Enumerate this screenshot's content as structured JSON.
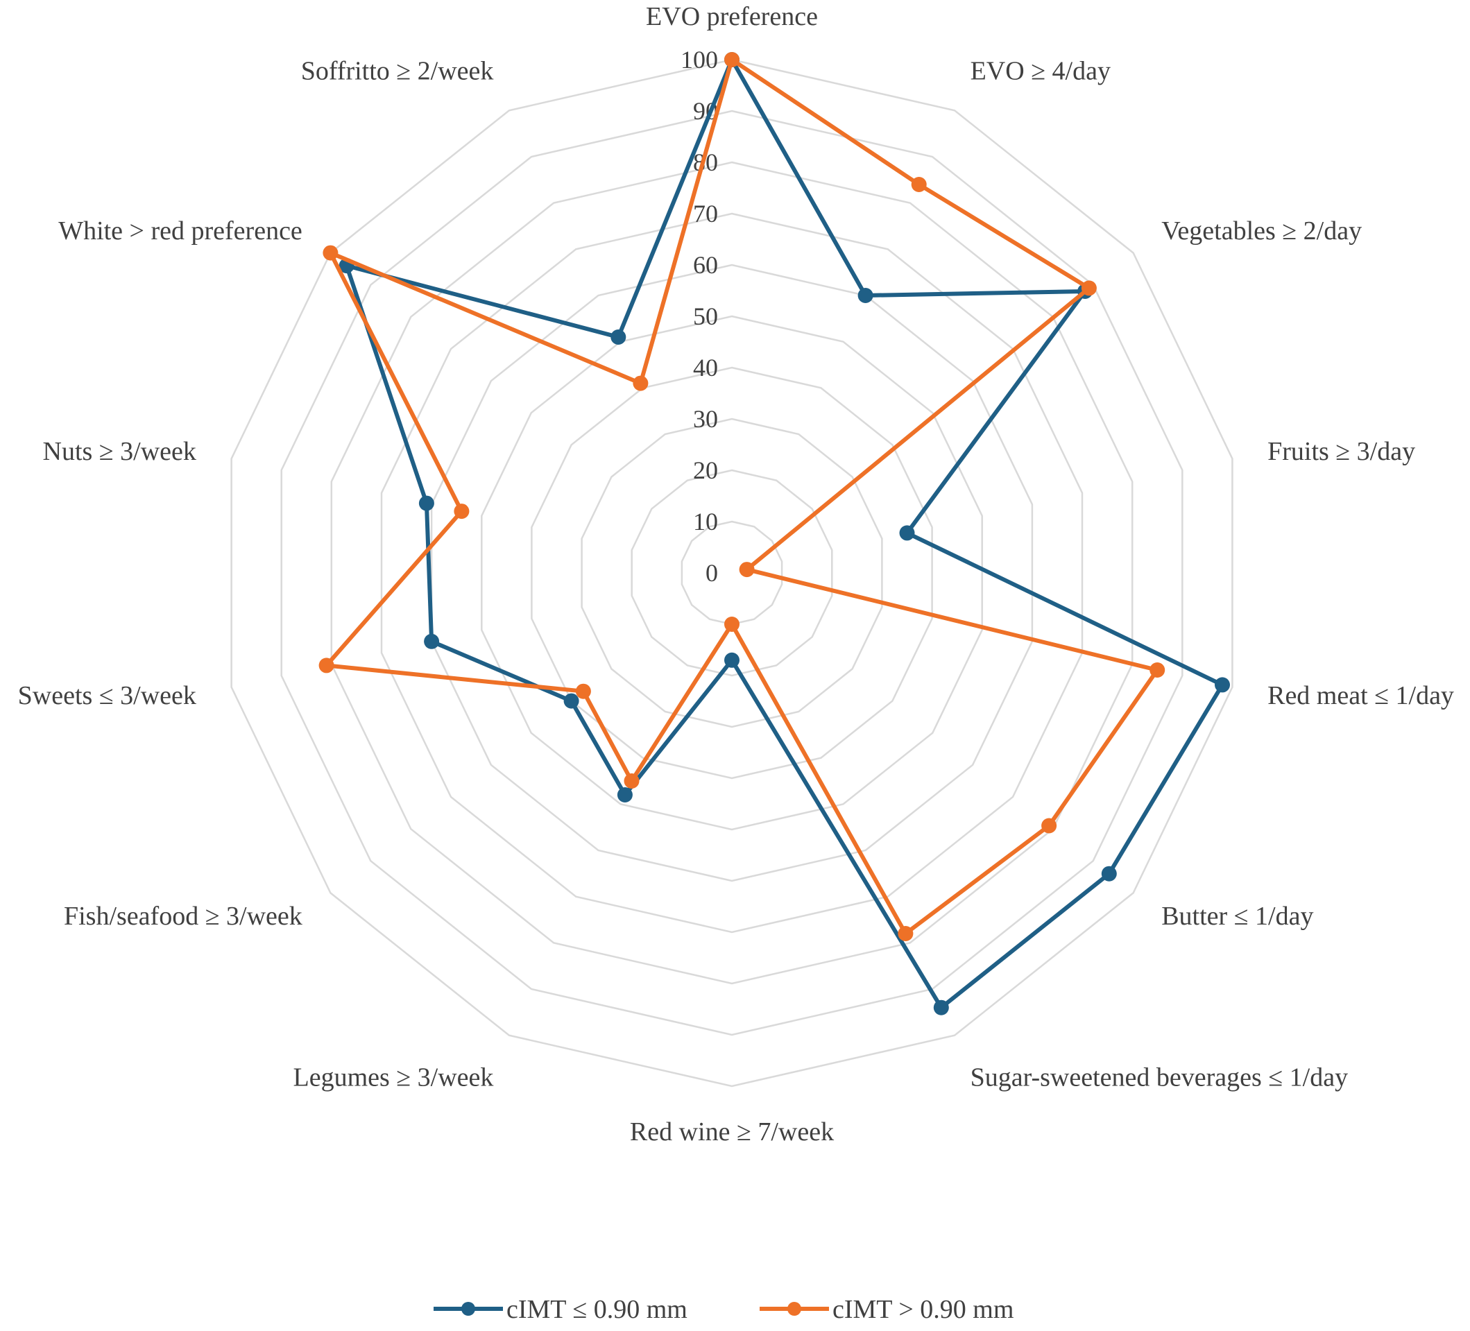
{
  "chart_data": {
    "type": "radar",
    "title": "",
    "axis_range": [
      0,
      100
    ],
    "tick_step": 10,
    "ticks": [
      "0",
      "10",
      "20",
      "30",
      "40",
      "50",
      "60",
      "70",
      "80",
      "90",
      "100"
    ],
    "categories": [
      "EVO preference",
      "EVO ≥ 4/day",
      "Vegetables ≥ 2/day",
      "Fruits ≥ 3/day",
      "Red meat ≤ 1/day",
      "Butter ≤ 1/day",
      "Sugar-sweetened beverages ≤ 1/day",
      "Red wine ≥ 7/week",
      "Legumes ≥ 3/week",
      "Fish/seafood ≥ 3/week",
      "Sweets ≤ 3/week",
      "Nuts ≥ 3/week",
      "White > red preference",
      "Soffritto ≥ 2/week"
    ],
    "series": [
      {
        "name": "cIMT ≤ 0.90 mm",
        "color": "#1F5F86",
        "values": [
          100,
          60,
          88,
          35,
          98,
          94,
          94,
          17,
          48,
          40,
          60,
          61,
          96,
          51
        ]
      },
      {
        "name": "cIMT > 0.90 mm",
        "color": "#EE7127",
        "values": [
          100,
          84,
          89,
          3,
          85,
          79,
          78,
          10,
          45,
          37,
          81,
          54,
          100,
          41
        ]
      }
    ],
    "legend_position": "bottom"
  }
}
